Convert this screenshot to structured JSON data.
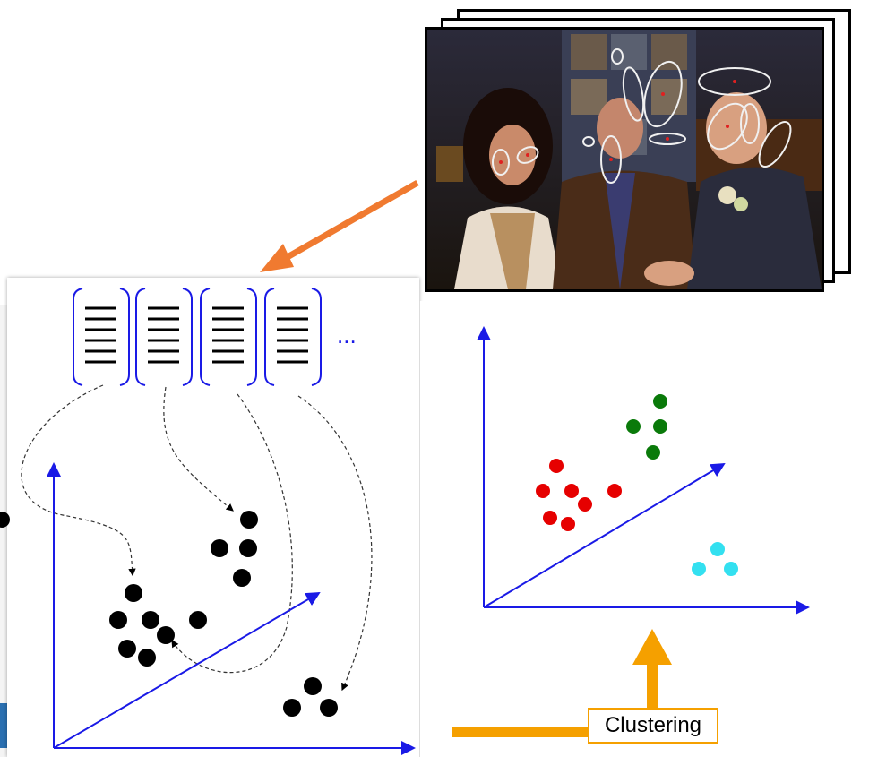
{
  "labels": {
    "ellipsis": "...",
    "clustering": "Clustering"
  },
  "colors": {
    "axis": "#1a1ae6",
    "arrow_orange": "#f07a30",
    "cluster_arrow": "#f5a000",
    "cluster_red": "#e60000",
    "cluster_green": "#0a7a0a",
    "cluster_cyan": "#33e0f0",
    "feature_black": "#000000",
    "ellipse": "#f0f0f0",
    "keypoint": "#e02020"
  },
  "icons": {
    "descriptor_vector": "bracketed-bars-icon",
    "video_frames": "stacked-frames-icon"
  }
}
